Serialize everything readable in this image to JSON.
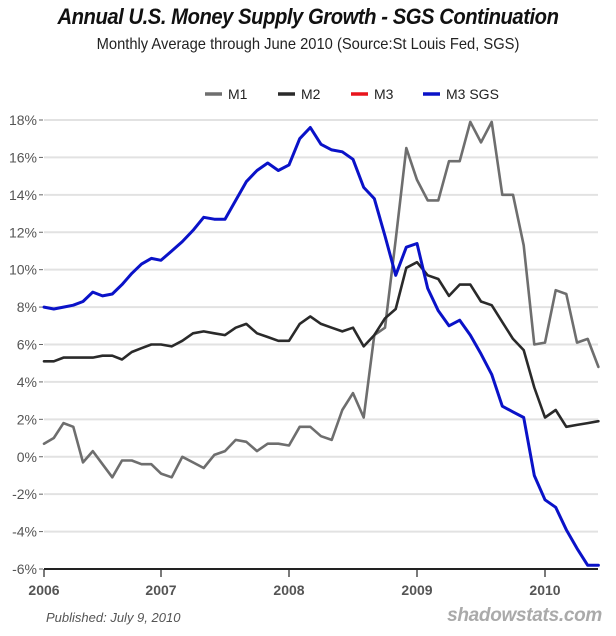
{
  "chart_data": {
    "type": "line",
    "title": "Annual U.S. Money Supply Growth - SGS Continuation",
    "subtitle": "Monthly Average through June 2010  (Source:St Louis Fed, SGS)",
    "xlabel": "",
    "ylabel": "",
    "x_start": "2006-01",
    "x_end": "2010-06",
    "x_frequency": "monthly",
    "x_ticks": [
      "2006",
      "2007",
      "2008",
      "2009",
      "2010"
    ],
    "y_ticks": [
      "18%",
      "16%",
      "14%",
      "12%",
      "10%",
      "8%",
      "6%",
      "4%",
      "2%",
      "0%",
      "-2%",
      "-4%",
      "-6%"
    ],
    "ylim": [
      -6,
      18
    ],
    "grid": true,
    "legend_position": "top-center",
    "series": [
      {
        "name": "M1",
        "color": "#6e6e6e",
        "values": [
          0.7,
          1.0,
          1.8,
          1.6,
          -0.3,
          0.3,
          -0.4,
          -1.1,
          -0.2,
          -0.2,
          -0.4,
          -0.4,
          -0.9,
          -1.1,
          0.0,
          -0.3,
          -0.6,
          0.1,
          0.3,
          0.9,
          0.8,
          0.3,
          0.7,
          0.7,
          0.6,
          1.6,
          1.6,
          1.1,
          0.9,
          2.5,
          3.4,
          2.1,
          6.5,
          6.9,
          11.6,
          16.5,
          14.8,
          13.7,
          13.7,
          15.8,
          15.8,
          17.9,
          16.8,
          17.9,
          14.0,
          14.0,
          11.3,
          6.0,
          6.1,
          8.9,
          8.7,
          6.1,
          6.3,
          4.8
        ]
      },
      {
        "name": "M2",
        "color": "#2a2a2a",
        "values": [
          5.1,
          5.1,
          5.3,
          5.3,
          5.3,
          5.3,
          5.4,
          5.4,
          5.2,
          5.6,
          5.8,
          6.0,
          6.0,
          5.9,
          6.2,
          6.6,
          6.7,
          6.6,
          6.5,
          6.9,
          7.1,
          6.6,
          6.4,
          6.2,
          6.2,
          7.1,
          7.5,
          7.1,
          6.9,
          6.7,
          6.9,
          5.9,
          6.5,
          7.4,
          7.9,
          10.1,
          10.4,
          9.7,
          9.5,
          8.6,
          9.2,
          9.2,
          8.3,
          8.1,
          7.2,
          6.3,
          5.7,
          3.7,
          2.1,
          2.5,
          1.6,
          1.7,
          1.8,
          1.9
        ]
      },
      {
        "name": "M3",
        "color": "#e8141c",
        "values": []
      },
      {
        "name": "M3 SGS",
        "color": "#0a12c8",
        "values": [
          8.0,
          7.9,
          8.0,
          8.1,
          8.3,
          8.8,
          8.6,
          8.7,
          9.2,
          9.8,
          10.3,
          10.6,
          10.5,
          11.0,
          11.5,
          12.1,
          12.8,
          12.7,
          12.7,
          13.7,
          14.7,
          15.3,
          15.7,
          15.3,
          15.6,
          17.0,
          17.6,
          16.7,
          16.4,
          16.3,
          15.9,
          14.4,
          13.8,
          11.8,
          9.7,
          11.2,
          11.4,
          9.0,
          7.8,
          7.0,
          7.3,
          6.5,
          5.5,
          4.4,
          2.7,
          2.4,
          2.1,
          -1.0,
          -2.3,
          -2.7,
          -3.9,
          -4.9,
          -5.8,
          -5.8
        ]
      }
    ]
  },
  "footer": {
    "published": "Published: July 9, 2010",
    "source_brand": "shadowstats.com"
  }
}
